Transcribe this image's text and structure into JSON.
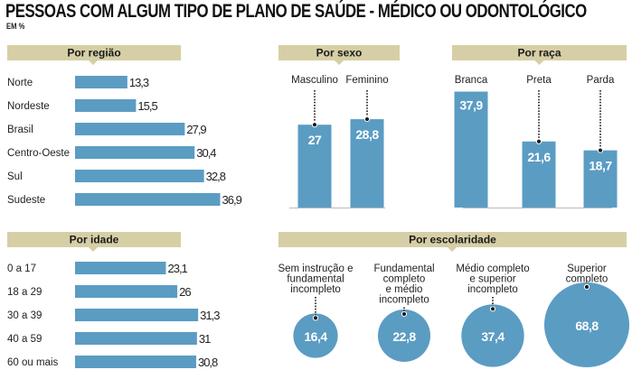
{
  "title": "PESSOAS COM ALGUM TIPO DE PLANO DE SAÚDE - MÉDICO OU ODONTOLÓGICO",
  "subtitle": "EM %",
  "colors": {
    "bar": "#5b9cc3",
    "header": "#d6cfa6",
    "dots": "#1a1a1a",
    "baseline": "#bbbbbb"
  },
  "chart_data": [
    {
      "id": "regiao",
      "type": "bar",
      "orientation": "horizontal",
      "title": "Por região",
      "categories": [
        "Norte",
        "Nordeste",
        "Brasil",
        "Centro-Oeste",
        "Sul",
        "Sudeste"
      ],
      "values": [
        13.3,
        15.5,
        27.9,
        30.4,
        32.8,
        36.9
      ],
      "labels": [
        "13,3",
        "15,5",
        "27,9",
        "30,4",
        "32,8",
        "36,9"
      ],
      "unit": "%"
    },
    {
      "id": "sexo",
      "type": "bar",
      "orientation": "vertical",
      "title": "Por sexo",
      "categories": [
        "Masculino",
        "Feminino"
      ],
      "values": [
        27,
        28.8
      ],
      "labels": [
        "27",
        "28,8"
      ],
      "unit": "%"
    },
    {
      "id": "raca",
      "type": "bar",
      "orientation": "vertical",
      "title": "Por raça",
      "categories": [
        "Branca",
        "Preta",
        "Parda"
      ],
      "values": [
        37.9,
        21.6,
        18.7
      ],
      "labels": [
        "37,9",
        "21,6",
        "18,7"
      ],
      "unit": "%"
    },
    {
      "id": "idade",
      "type": "bar",
      "orientation": "horizontal",
      "title": "Por idade",
      "categories": [
        "0 a 17",
        "18 a 29",
        "30 a 39",
        "40 a 59",
        "60 ou mais"
      ],
      "values": [
        23.1,
        26,
        31.3,
        31,
        30.8
      ],
      "labels": [
        "23,1",
        "26",
        "31,3",
        "31",
        "30,8"
      ],
      "unit": "%"
    },
    {
      "id": "escolaridade",
      "type": "bubble",
      "title": "Por escolaridade",
      "categories": [
        [
          "Sem instrução e",
          "fundamental",
          "incompleto"
        ],
        [
          "Fundamental",
          "completo",
          "e médio",
          "incompleto"
        ],
        [
          "Médio completo",
          "e superior",
          "incompleto"
        ],
        [
          "Superior",
          "completo"
        ]
      ],
      "values": [
        16.4,
        22.8,
        37.4,
        68.8
      ],
      "labels": [
        "16,4",
        "22,8",
        "37,4",
        "68,8"
      ],
      "unit": "%"
    }
  ]
}
